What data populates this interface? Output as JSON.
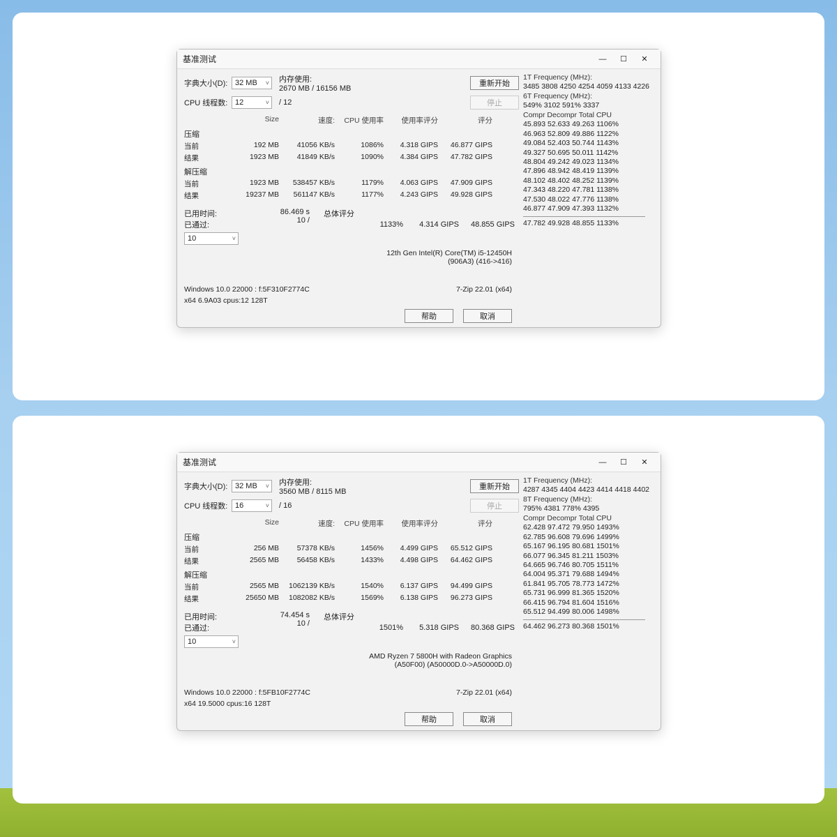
{
  "windows": [
    {
      "title": "基准测试",
      "dict_size_label": "字典大小(D):",
      "dict_size_value": "32 MB",
      "threads_label": "CPU 线程数:",
      "threads_value": "12",
      "threads_total": "/ 12",
      "mem_label": "内存使用:",
      "mem_value": "2670 MB / 16156 MB",
      "btn_restart": "重新开始",
      "btn_stop": "停止",
      "headers": [
        "Size",
        "速度:",
        "CPU 使用率",
        "使用率评分",
        "评分"
      ],
      "compress_label": "压缩",
      "compress_rows": [
        {
          "lbl": "当前",
          "size": "192 MB",
          "speed": "41056 KB/s",
          "cpu": "1086%",
          "rating": "4.318 GIPS",
          "score": "46.877 GIPS"
        },
        {
          "lbl": "结果",
          "size": "1923 MB",
          "speed": "41849 KB/s",
          "cpu": "1090%",
          "rating": "4.384 GIPS",
          "score": "47.782 GIPS"
        }
      ],
      "decompress_label": "解压缩",
      "decompress_rows": [
        {
          "lbl": "当前",
          "size": "1923 MB",
          "speed": "538457 KB/s",
          "cpu": "1179%",
          "rating": "4.063 GIPS",
          "score": "47.909 GIPS"
        },
        {
          "lbl": "结果",
          "size": "19237 MB",
          "speed": "561147 KB/s",
          "cpu": "1177%",
          "rating": "4.243 GIPS",
          "score": "49.928 GIPS"
        }
      ],
      "elapsed_label": "已用时间:",
      "elapsed_value": "86.469 s",
      "passes_label": "已通过:",
      "passes_value": "10 /",
      "passes_select": "10",
      "overall_label": "总体评分",
      "overall_row": {
        "cpu": "1133%",
        "rating": "4.314 GIPS",
        "score": "48.855 GIPS"
      },
      "cpu_name": "12th Gen Intel(R) Core(TM) i5-12450H",
      "cpu_id": "(906A3) (416->416)",
      "os_line": "Windows 10.0 22000 : f:5F310F2774C",
      "app_line": "7-Zip 22.01 (x64)",
      "arch_line": "x64 6.9A03 cpus:12 128T",
      "btn_help": "帮助",
      "btn_cancel": "取消",
      "freq1_label": "1T Frequency (MHz):",
      "freq1_value": "3485 3808 4250 4254 4059 4133 4226",
      "freq6_label": "6T Frequency (MHz):",
      "freq6_value": "549% 3102 591% 3337",
      "matrix_header": "Compr Decompr Total   CPU",
      "matrix_rows": [
        "45.893  52.633  49.263  1106%",
        "46.963  52.809  49.886  1122%",
        "49.084  52.403  50.744  1143%",
        "49.327  50.695  50.011  1142%",
        "48.804  49.242  49.023  1134%",
        "47.896  48.942  48.419  1139%",
        "48.102  48.402  48.252  1139%",
        "47.343  48.220  47.781  1138%",
        "47.530  48.022  47.776  1138%",
        "46.877  47.909  47.393  1132%"
      ],
      "matrix_total": "47.782  49.928  48.855  1133%"
    },
    {
      "title": "基准测试",
      "dict_size_label": "字典大小(D):",
      "dict_size_value": "32 MB",
      "threads_label": "CPU 线程数:",
      "threads_value": "16",
      "threads_total": "/ 16",
      "mem_label": "内存使用:",
      "mem_value": "3560 MB / 8115 MB",
      "btn_restart": "重新开始",
      "btn_stop": "停止",
      "headers": [
        "Size",
        "速度:",
        "CPU 使用率",
        "使用率评分",
        "评分"
      ],
      "compress_label": "压缩",
      "compress_rows": [
        {
          "lbl": "当前",
          "size": "256 MB",
          "speed": "57378 KB/s",
          "cpu": "1456%",
          "rating": "4.499 GIPS",
          "score": "65.512 GIPS"
        },
        {
          "lbl": "结果",
          "size": "2565 MB",
          "speed": "56458 KB/s",
          "cpu": "1433%",
          "rating": "4.498 GIPS",
          "score": "64.462 GIPS"
        }
      ],
      "decompress_label": "解压缩",
      "decompress_rows": [
        {
          "lbl": "当前",
          "size": "2565 MB",
          "speed": "1062139 KB/s",
          "cpu": "1540%",
          "rating": "6.137 GIPS",
          "score": "94.499 GIPS"
        },
        {
          "lbl": "结果",
          "size": "25650 MB",
          "speed": "1082082 KB/s",
          "cpu": "1569%",
          "rating": "6.138 GIPS",
          "score": "96.273 GIPS"
        }
      ],
      "elapsed_label": "已用时间:",
      "elapsed_value": "74.454 s",
      "passes_label": "已通过:",
      "passes_value": "10 /",
      "passes_select": "10",
      "overall_label": "总体评分",
      "overall_row": {
        "cpu": "1501%",
        "rating": "5.318 GIPS",
        "score": "80.368 GIPS"
      },
      "cpu_name": "AMD Ryzen 7 5800H with Radeon Graphics",
      "cpu_id": "(A50F00) (A50000D.0->A50000D.0)",
      "os_line": "Windows 10.0 22000 : f:5FB10F2774C",
      "app_line": "7-Zip 22.01 (x64)",
      "arch_line": "x64 19.5000 cpus:16 128T",
      "btn_help": "帮助",
      "btn_cancel": "取消",
      "freq1_label": "1T Frequency (MHz):",
      "freq1_value": "4287 4345 4404 4423 4414 4418 4402",
      "freq6_label": "8T Frequency (MHz):",
      "freq6_value": "795% 4381 778% 4395",
      "matrix_header": "Compr Decompr Total   CPU",
      "matrix_rows": [
        "62.428  97.472  79.950  1493%",
        "62.785  96.608  79.696  1499%",
        "65.167  96.195  80.681  1501%",
        "66.077  96.345  81.211  1503%",
        "64.665  96.746  80.705  1511%",
        "64.004  95.371  79.688  1494%",
        "61.841  95.705  78.773  1472%",
        "65.731  96.999  81.365  1520%",
        "66.415  96.794  81.604  1516%",
        "65.512  94.499  80.006  1498%"
      ],
      "matrix_total": "64.462  96.273  80.368  1501%"
    }
  ]
}
